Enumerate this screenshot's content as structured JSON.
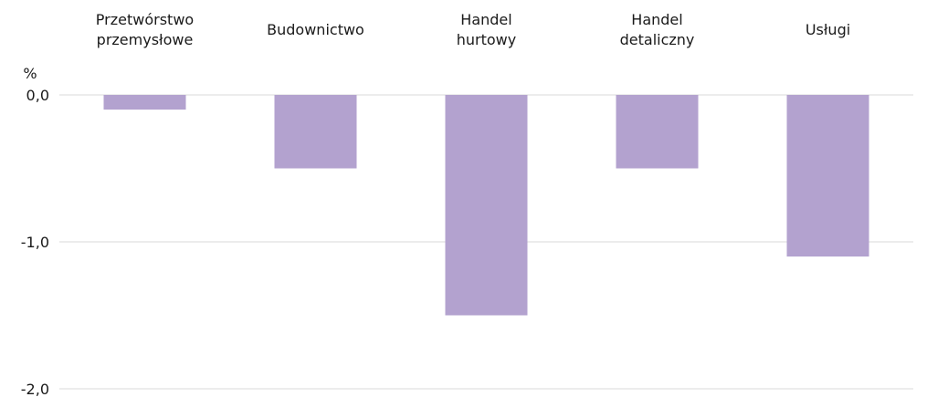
{
  "chart_data": {
    "type": "bar",
    "categories": [
      [
        "Przetwórstwo",
        "przemysłowe"
      ],
      [
        "Budownictwo"
      ],
      [
        "Handel",
        "hurtowy"
      ],
      [
        "Handel",
        "detaliczny"
      ],
      [
        "Usługi"
      ]
    ],
    "values": [
      -0.1,
      -0.5,
      -1.5,
      -0.5,
      -1.1
    ],
    "ylabel": "%",
    "ylim": [
      -2.0,
      0.0
    ],
    "yticks": [
      0.0,
      -1.0,
      -2.0
    ],
    "ytick_labels": [
      "0,0",
      "-1,0",
      "-2,0"
    ],
    "grid": true,
    "bar_color": "#b3a2cf",
    "grid_color": "#d9d9d9"
  }
}
